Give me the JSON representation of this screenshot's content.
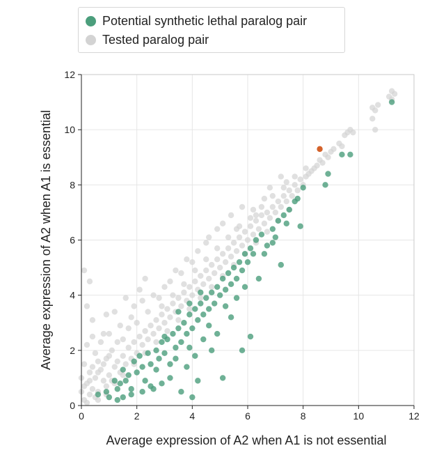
{
  "legend": {
    "items": [
      {
        "label": "Potential synthetic lethal paralog pair",
        "color": "#4b9e7c"
      },
      {
        "label": "Tested paralog pair",
        "color": "#d3d3d3"
      }
    ]
  },
  "chart_data": {
    "type": "scatter",
    "xlabel": "Average expression of A2 when A1 is not essential",
    "ylabel": "Average expression of A2 when A1 is essential",
    "xlim": [
      0,
      12
    ],
    "ylim": [
      0,
      12
    ],
    "xticks": [
      0,
      2,
      4,
      6,
      8,
      10,
      12
    ],
    "yticks": [
      0,
      2,
      4,
      6,
      8,
      10,
      12
    ],
    "grid": true,
    "legend_position": "top",
    "series": [
      {
        "name": "Tested paralog pair",
        "color": "#d3d3d3",
        "points": [
          [
            0.1,
            0.2
          ],
          [
            0.2,
            0.1
          ],
          [
            0.3,
            0.4
          ],
          [
            0.5,
            0.3
          ],
          [
            0.4,
            0.6
          ],
          [
            0.6,
            0.5
          ],
          [
            0.8,
            0.9
          ],
          [
            0.9,
            0.7
          ],
          [
            1.0,
            1.1
          ],
          [
            1.1,
            0.9
          ],
          [
            0.2,
            0.8
          ],
          [
            0.3,
            1.2
          ],
          [
            0.1,
            1.5
          ],
          [
            0.5,
            1.9
          ],
          [
            0.2,
            2.2
          ],
          [
            0.4,
            2.5
          ],
          [
            0.8,
            2.6
          ],
          [
            0.6,
            1.6
          ],
          [
            1.2,
            1.4
          ],
          [
            1.3,
            1.6
          ],
          [
            1.4,
            1.2
          ],
          [
            1.5,
            1.8
          ],
          [
            1.6,
            1.5
          ],
          [
            1.7,
            2.1
          ],
          [
            1.8,
            1.7
          ],
          [
            1.9,
            2.3
          ],
          [
            2.0,
            1.9
          ],
          [
            2.1,
            2.5
          ],
          [
            2.2,
            2.2
          ],
          [
            2.3,
            2.7
          ],
          [
            2.4,
            2.4
          ],
          [
            2.5,
            2.9
          ],
          [
            2.6,
            2.6
          ],
          [
            2.7,
            3.1
          ],
          [
            2.8,
            2.8
          ],
          [
            2.9,
            3.3
          ],
          [
            3.0,
            3.0
          ],
          [
            3.1,
            3.5
          ],
          [
            3.2,
            3.2
          ],
          [
            3.3,
            3.7
          ],
          [
            3.4,
            3.4
          ],
          [
            3.5,
            3.9
          ],
          [
            3.6,
            3.6
          ],
          [
            3.7,
            4.1
          ],
          [
            3.8,
            3.8
          ],
          [
            3.9,
            4.3
          ],
          [
            4.0,
            4.0
          ],
          [
            4.1,
            4.5
          ],
          [
            4.2,
            4.2
          ],
          [
            4.3,
            4.7
          ],
          [
            4.4,
            4.4
          ],
          [
            4.5,
            4.9
          ],
          [
            4.6,
            4.6
          ],
          [
            4.7,
            5.1
          ],
          [
            4.8,
            4.8
          ],
          [
            4.9,
            5.3
          ],
          [
            5.0,
            5.0
          ],
          [
            5.1,
            5.5
          ],
          [
            5.2,
            5.2
          ],
          [
            5.3,
            5.7
          ],
          [
            5.4,
            5.4
          ],
          [
            5.5,
            5.9
          ],
          [
            5.6,
            5.6
          ],
          [
            5.7,
            6.1
          ],
          [
            5.8,
            5.8
          ],
          [
            5.9,
            6.3
          ],
          [
            6.0,
            6.0
          ],
          [
            6.1,
            6.5
          ],
          [
            6.2,
            6.2
          ],
          [
            6.3,
            6.7
          ],
          [
            6.4,
            6.4
          ],
          [
            6.5,
            6.9
          ],
          [
            6.6,
            6.6
          ],
          [
            6.7,
            7.0
          ],
          [
            6.8,
            6.8
          ],
          [
            6.9,
            7.2
          ],
          [
            7.0,
            7.0
          ],
          [
            7.1,
            7.4
          ],
          [
            7.2,
            7.2
          ],
          [
            7.3,
            7.6
          ],
          [
            7.4,
            7.4
          ],
          [
            7.5,
            7.8
          ],
          [
            7.6,
            7.6
          ],
          [
            7.7,
            8.0
          ],
          [
            7.8,
            7.8
          ],
          [
            7.9,
            8.2
          ],
          [
            8.0,
            8.0
          ],
          [
            8.1,
            8.3
          ],
          [
            8.2,
            8.4
          ],
          [
            8.4,
            8.6
          ],
          [
            8.5,
            8.7
          ],
          [
            8.6,
            8.9
          ],
          [
            8.7,
            8.8
          ],
          [
            8.8,
            9.1
          ],
          [
            9.0,
            9.2
          ],
          [
            9.1,
            9.3
          ],
          [
            9.3,
            9.5
          ],
          [
            9.5,
            9.8
          ],
          [
            9.7,
            10.0
          ],
          [
            9.6,
            9.9
          ],
          [
            7.2,
            8.3
          ],
          [
            6.8,
            7.9
          ],
          [
            5.8,
            7.2
          ],
          [
            5.4,
            6.9
          ],
          [
            4.9,
            6.4
          ],
          [
            4.6,
            6.1
          ],
          [
            4.2,
            5.6
          ],
          [
            3.8,
            5.3
          ],
          [
            3.4,
            4.9
          ],
          [
            3.0,
            4.3
          ],
          [
            2.6,
            4.0
          ],
          [
            2.2,
            3.8
          ],
          [
            1.8,
            3.2
          ],
          [
            1.4,
            2.9
          ],
          [
            1.0,
            2.6
          ],
          [
            0.7,
            2.3
          ],
          [
            2.3,
            4.6
          ],
          [
            1.9,
            3.6
          ],
          [
            2.8,
            3.9
          ],
          [
            3.6,
            4.8
          ],
          [
            4.5,
            5.9
          ],
          [
            5.1,
            6.6
          ],
          [
            6.2,
            7.1
          ],
          [
            6.6,
            7.5
          ],
          [
            7.4,
            8.1
          ],
          [
            0.1,
            4.9
          ],
          [
            0.3,
            4.5
          ],
          [
            0.2,
            3.6
          ],
          [
            0.4,
            3.1
          ],
          [
            0.9,
            3.3
          ],
          [
            1.2,
            3.4
          ],
          [
            1.6,
            3.9
          ],
          [
            2.1,
            4.2
          ],
          [
            3.2,
            4.5
          ],
          [
            4.0,
            5.2
          ],
          [
            5.6,
            6.4
          ],
          [
            6.3,
            6.9
          ],
          [
            10.5,
            10.8
          ],
          [
            10.6,
            10.0
          ],
          [
            10.5,
            10.4
          ],
          [
            10.7,
            10.9
          ],
          [
            11.2,
            11.4
          ],
          [
            11.3,
            11.3
          ],
          [
            11.1,
            11.2
          ],
          [
            11.2,
            11.1
          ],
          [
            10.6,
            10.7
          ],
          [
            9.8,
            9.9
          ],
          [
            9.4,
            9.4
          ],
          [
            8.9,
            9.0
          ],
          [
            8.3,
            8.5
          ],
          [
            0.6,
            0.2
          ],
          [
            0.9,
            0.4
          ],
          [
            1.2,
            0.8
          ],
          [
            1.5,
            1.1
          ],
          [
            1.9,
            1.5
          ],
          [
            2.3,
            1.9
          ],
          [
            2.7,
            2.3
          ],
          [
            3.1,
            2.7
          ],
          [
            3.5,
            3.1
          ],
          [
            3.9,
            3.5
          ],
          [
            4.3,
            3.9
          ],
          [
            4.7,
            4.3
          ],
          [
            5.1,
            4.7
          ],
          [
            5.5,
            5.1
          ],
          [
            5.9,
            5.5
          ],
          [
            6.3,
            5.9
          ],
          [
            6.7,
            6.3
          ],
          [
            7.1,
            6.7
          ],
          [
            7.5,
            7.1
          ],
          [
            0.5,
            1.0
          ],
          [
            0.7,
            1.3
          ],
          [
            0.9,
            1.7
          ],
          [
            1.1,
            2.0
          ],
          [
            1.3,
            2.3
          ],
          [
            1.5,
            2.4
          ],
          [
            1.7,
            2.8
          ],
          [
            2.0,
            3.0
          ],
          [
            2.4,
            3.4
          ],
          [
            2.9,
            3.6
          ],
          [
            3.3,
            4.0
          ],
          [
            3.7,
            4.4
          ],
          [
            4.1,
            4.9
          ],
          [
            4.5,
            5.3
          ],
          [
            4.9,
            5.7
          ],
          [
            5.3,
            6.1
          ],
          [
            5.7,
            6.5
          ],
          [
            6.1,
            6.8
          ],
          [
            6.5,
            7.2
          ],
          [
            6.9,
            7.6
          ],
          [
            7.3,
            7.9
          ],
          [
            7.7,
            8.3
          ],
          [
            8.1,
            8.6
          ],
          [
            0.0,
            0.5
          ],
          [
            0.0,
            1.0
          ],
          [
            0.1,
            0.7
          ],
          [
            0.3,
            0.9
          ],
          [
            0.4,
            1.4
          ],
          [
            0.6,
            1.2
          ],
          [
            0.8,
            1.5
          ],
          [
            1.0,
            1.8
          ]
        ]
      },
      {
        "name": "Potential synthetic lethal paralog pair",
        "color": "#4b9e7c",
        "points": [
          [
            0.6,
            0.4
          ],
          [
            0.9,
            0.5
          ],
          [
            1.0,
            0.3
          ],
          [
            1.2,
            0.9
          ],
          [
            1.3,
            0.6
          ],
          [
            1.4,
            0.8
          ],
          [
            1.5,
            1.3
          ],
          [
            1.6,
            0.9
          ],
          [
            1.7,
            1.1
          ],
          [
            1.8,
            0.6
          ],
          [
            1.9,
            1.6
          ],
          [
            2.0,
            1.2
          ],
          [
            2.1,
            1.8
          ],
          [
            2.2,
            1.4
          ],
          [
            2.3,
            0.9
          ],
          [
            2.4,
            1.9
          ],
          [
            2.5,
            1.5
          ],
          [
            2.6,
            0.6
          ],
          [
            2.7,
            2.0
          ],
          [
            2.8,
            1.7
          ],
          [
            2.9,
            2.3
          ],
          [
            3.0,
            1.9
          ],
          [
            3.1,
            2.4
          ],
          [
            3.2,
            1.5
          ],
          [
            3.3,
            2.6
          ],
          [
            3.4,
            2.1
          ],
          [
            3.5,
            2.8
          ],
          [
            3.6,
            2.3
          ],
          [
            3.7,
            3.0
          ],
          [
            3.8,
            2.6
          ],
          [
            3.9,
            3.3
          ],
          [
            4.0,
            2.8
          ],
          [
            4.1,
            3.5
          ],
          [
            4.2,
            3.1
          ],
          [
            4.3,
            3.7
          ],
          [
            4.4,
            3.3
          ],
          [
            4.5,
            3.9
          ],
          [
            4.6,
            3.5
          ],
          [
            4.7,
            4.1
          ],
          [
            4.8,
            3.7
          ],
          [
            4.9,
            4.3
          ],
          [
            5.0,
            4.0
          ],
          [
            5.1,
            4.6
          ],
          [
            5.2,
            4.2
          ],
          [
            5.3,
            4.8
          ],
          [
            5.4,
            4.4
          ],
          [
            5.5,
            5.0
          ],
          [
            5.6,
            4.6
          ],
          [
            5.7,
            5.2
          ],
          [
            5.8,
            4.9
          ],
          [
            5.9,
            5.5
          ],
          [
            6.0,
            5.2
          ],
          [
            6.1,
            5.7
          ],
          [
            6.2,
            5.5
          ],
          [
            6.3,
            6.0
          ],
          [
            6.5,
            6.2
          ],
          [
            6.7,
            5.8
          ],
          [
            6.9,
            6.4
          ],
          [
            7.1,
            6.7
          ],
          [
            7.3,
            6.9
          ],
          [
            7.5,
            7.1
          ],
          [
            7.7,
            7.4
          ],
          [
            7.8,
            7.5
          ],
          [
            7.9,
            6.5
          ],
          [
            7.2,
            5.1
          ],
          [
            6.9,
            5.9
          ],
          [
            8.0,
            7.9
          ],
          [
            8.8,
            8.0
          ],
          [
            8.9,
            8.4
          ],
          [
            9.4,
            9.1
          ],
          [
            9.7,
            9.1
          ],
          [
            11.2,
            11.0
          ],
          [
            5.1,
            1.0
          ],
          [
            5.8,
            2.0
          ],
          [
            6.1,
            2.5
          ],
          [
            4.7,
            2.0
          ],
          [
            4.0,
            0.3
          ],
          [
            4.2,
            0.9
          ],
          [
            3.8,
            1.4
          ],
          [
            3.6,
            0.5
          ],
          [
            3.2,
            1.0
          ],
          [
            2.9,
            0.8
          ],
          [
            2.5,
            0.7
          ],
          [
            2.2,
            0.5
          ],
          [
            1.8,
            0.4
          ],
          [
            1.5,
            0.3
          ],
          [
            1.3,
            0.2
          ],
          [
            3.9,
            2.1
          ],
          [
            4.4,
            2.4
          ],
          [
            4.9,
            2.6
          ],
          [
            5.4,
            3.2
          ],
          [
            5.2,
            3.6
          ],
          [
            4.6,
            2.9
          ],
          [
            4.1,
            1.8
          ],
          [
            3.4,
            1.7
          ],
          [
            3.0,
            2.5
          ],
          [
            2.7,
            1.3
          ],
          [
            5.9,
            4.3
          ],
          [
            6.4,
            4.6
          ],
          [
            6.6,
            5.5
          ],
          [
            7.0,
            6.1
          ],
          [
            7.4,
            6.6
          ],
          [
            5.6,
            3.9
          ],
          [
            4.3,
            4.1
          ],
          [
            3.9,
            3.7
          ],
          [
            3.5,
            3.4
          ]
        ]
      },
      {
        "name": "",
        "color": "#d4622a",
        "points": [
          [
            8.6,
            9.3
          ]
        ]
      }
    ]
  }
}
